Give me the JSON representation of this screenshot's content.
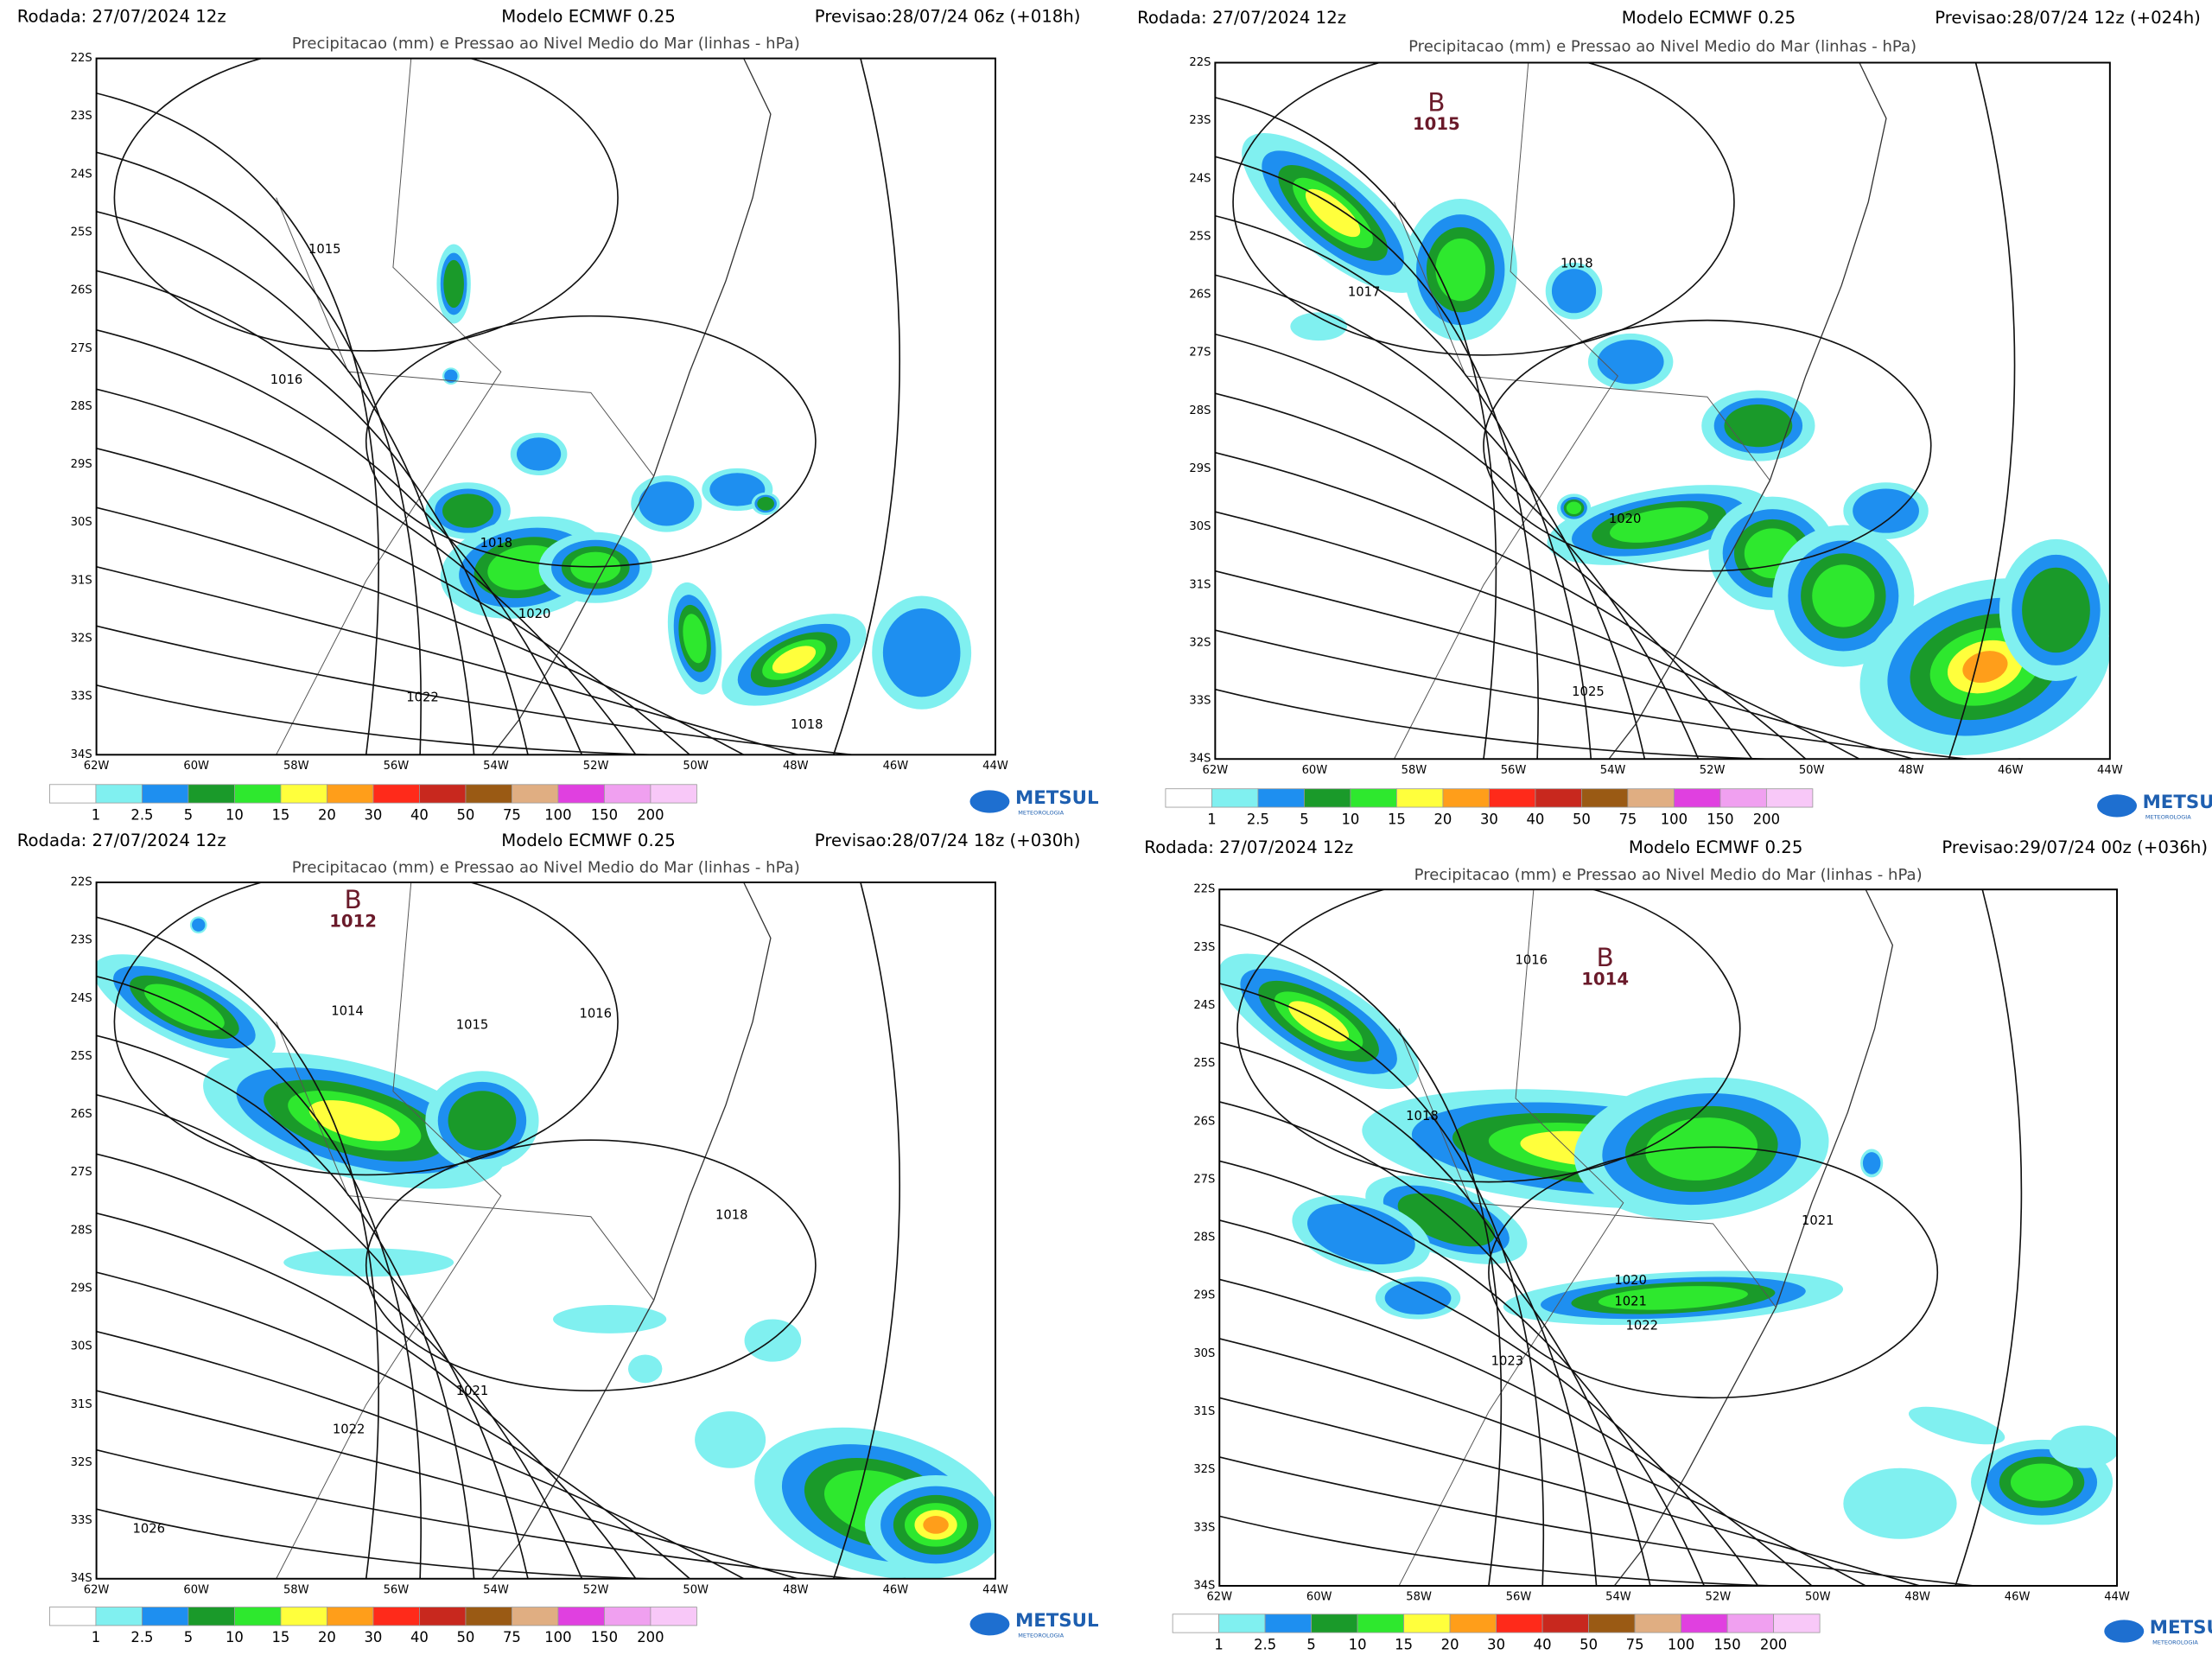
{
  "lat_labels": [
    "22S",
    "23S",
    "24S",
    "25S",
    "26S",
    "27S",
    "28S",
    "29S",
    "30S",
    "31S",
    "32S",
    "33S",
    "34S"
  ],
  "lon_labels": [
    "62W",
    "60W",
    "58W",
    "56W",
    "54W",
    "52W",
    "50W",
    "48W",
    "46W",
    "44W"
  ],
  "legend": {
    "values": [
      1,
      2.5,
      5,
      10,
      15,
      20,
      30,
      40,
      50,
      75,
      100,
      150,
      200
    ],
    "colors": [
      "#ffffff",
      "#80f0f0",
      "#1e8ff0",
      "#1a9a2a",
      "#2ee82e",
      "#ffff3c",
      "#ff9e1a",
      "#ff2a1a",
      "#c8281e",
      "#9a5a14",
      "#e0ae82",
      "#e040e0",
      "#f0a0f0",
      "#f8c8f8"
    ]
  },
  "logo": {
    "name": "METSUL",
    "tagline": "METEOROLOGIA"
  },
  "panels": [
    {
      "run": "Rodada: 27/07/2024 12z",
      "model": "Modelo ECMWF 0.25",
      "forecast": "Previsao:28/07/24 06z (+018h)",
      "title": "Precipitacao (mm) e Pressao ao Nivel Medio do Mar (linhas - hPa)",
      "isobars": [
        1015,
        1016,
        1018,
        1020,
        1022,
        1018
      ]
    },
    {
      "run": "Rodada: 27/07/2024 12z",
      "model": "Modelo ECMWF 0.25",
      "forecast": "Previsao:28/07/24 12z (+024h)",
      "title": "Precipitacao (mm) e Pressao ao Nivel Medio do Mar (linhas - hPa)",
      "low": {
        "symbol": "B",
        "pressure": 1015
      },
      "isobars": [
        1017,
        1018,
        1020,
        1025
      ]
    },
    {
      "run": "Rodada: 27/07/2024 12z",
      "model": "Modelo ECMWF 0.25",
      "forecast": "Previsao:28/07/24 18z (+030h)",
      "title": "Precipitacao (mm) e Pressao ao Nivel Medio do Mar (linhas - hPa)",
      "low": {
        "symbol": "B",
        "pressure": 1012
      },
      "isobars": [
        1014,
        1015,
        1016,
        1018,
        1021,
        1022,
        1026
      ]
    },
    {
      "run": "Rodada: 27/07/2024 12z",
      "model": "Modelo ECMWF 0.25",
      "forecast": "Previsao:29/07/24 00z (+036h)",
      "title": "Precipitacao (mm) e Pressao ao Nivel Medio do Mar (linhas - hPa)",
      "low": {
        "symbol": "B",
        "pressure": 1014
      },
      "isobars": [
        1016,
        1018,
        1021,
        1020,
        1021,
        1022,
        1023
      ]
    }
  ]
}
